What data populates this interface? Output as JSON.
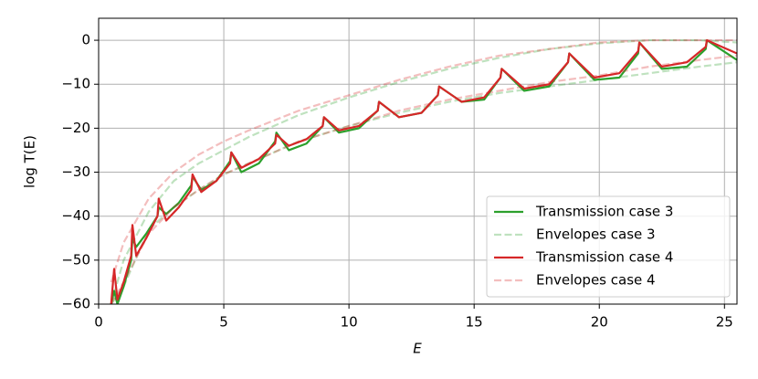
{
  "chart_data": {
    "type": "line",
    "xlabel": "E",
    "ylabel": "log T(E)",
    "xlim": [
      0,
      25.5
    ],
    "ylim": [
      -60,
      5
    ],
    "xticks": [
      0,
      5,
      10,
      15,
      20,
      25
    ],
    "yticks": [
      {
        "value": -60,
        "label": "−60"
      },
      {
        "value": -50,
        "label": "−50"
      },
      {
        "value": -40,
        "label": "−40"
      },
      {
        "value": -30,
        "label": "−30"
      },
      {
        "value": -20,
        "label": "−20"
      },
      {
        "value": -10,
        "label": "−10"
      },
      0
    ],
    "grid": true,
    "legend": "lower right",
    "series": [
      {
        "name": "Transmission case 3",
        "color": "#2ca02c",
        "alpha": 1,
        "dashed": false,
        "x": [
          0.5,
          0.62,
          0.75,
          1.0,
          1.3,
          1.35,
          1.5,
          1.9,
          2.35,
          2.4,
          2.7,
          3.2,
          3.7,
          3.75,
          4.1,
          4.7,
          5.25,
          5.3,
          5.7,
          6.4,
          7.05,
          7.1,
          7.6,
          8.3,
          8.95,
          9.0,
          9.6,
          10.4,
          11.15,
          11.2,
          12.0,
          12.9,
          13.55,
          13.6,
          14.5,
          15.4,
          16.05,
          16.1,
          17.0,
          18.0,
          18.75,
          18.8,
          19.8,
          20.8,
          21.55,
          21.6,
          22.5,
          23.5,
          24.25,
          24.3,
          25.5
        ],
        "curves": [
          [
            -60,
            -57,
            -60,
            -56,
            -50,
            -45,
            -47,
            -44,
            -40,
            -38,
            -39.5,
            -37,
            -33,
            -31,
            -34,
            -32,
            -27.5,
            -25.5,
            -30,
            -28,
            -23,
            -21,
            -25,
            -23.5,
            -19.5,
            -17.5,
            -21,
            -20,
            -16,
            -14,
            -17.5,
            -16.5,
            -12.5,
            -10.5,
            -14,
            -13.5,
            -8.5,
            -6.5,
            -11.5,
            -10.5,
            -5,
            -3,
            -9,
            -8.5,
            -3,
            -0.5,
            -6.5,
            -6,
            -2,
            0,
            -4.5
          ]
        ]
      },
      {
        "name": "Envelopes case 3",
        "color": "#2ca02c",
        "alpha": 0.3,
        "dashed": true,
        "x": [
          0.5,
          1,
          2,
          3,
          4,
          5,
          6,
          8,
          10,
          12,
          14,
          16,
          18,
          20,
          22,
          24,
          25.5
        ],
        "curves": [
          [
            -60,
            -50,
            -39,
            -32,
            -28,
            -25,
            -22,
            -17,
            -13,
            -9.5,
            -6.5,
            -4,
            -2,
            -0.7,
            0,
            0,
            -0.5
          ],
          [
            -60,
            -56,
            -43,
            -38,
            -34,
            -30.5,
            -28,
            -23,
            -19.5,
            -16.5,
            -14,
            -12,
            -10.5,
            -9,
            -7.5,
            -6,
            -5
          ]
        ]
      },
      {
        "name": "Transmission case 4",
        "color": "#d62728",
        "alpha": 1,
        "dashed": false,
        "x": [
          0.5,
          0.62,
          0.75,
          1.0,
          1.3,
          1.35,
          1.5,
          1.9,
          2.35,
          2.4,
          2.7,
          3.2,
          3.7,
          3.75,
          4.1,
          4.7,
          5.25,
          5.3,
          5.7,
          6.4,
          7.05,
          7.1,
          7.6,
          8.3,
          8.95,
          9.0,
          9.6,
          10.4,
          11.15,
          11.2,
          12.0,
          12.9,
          13.55,
          13.6,
          14.5,
          15.4,
          16.05,
          16.1,
          17.0,
          18.0,
          18.75,
          18.8,
          19.8,
          20.8,
          21.55,
          21.6,
          22.5,
          23.5,
          24.25,
          24.3,
          25.5
        ],
        "curves": [
          [
            -60,
            -52,
            -59,
            -55,
            -49,
            -42,
            -49,
            -45,
            -40,
            -36,
            -41,
            -38,
            -34,
            -30.5,
            -34.5,
            -32,
            -28,
            -25.5,
            -29,
            -27,
            -23.5,
            -21.5,
            -24,
            -22.5,
            -19.5,
            -17.5,
            -20.5,
            -19.5,
            -16,
            -14,
            -17.5,
            -16.5,
            -12.5,
            -10.5,
            -14,
            -13,
            -8.5,
            -6.5,
            -11,
            -10,
            -5,
            -3,
            -8.5,
            -7.5,
            -2.5,
            -0.5,
            -6,
            -5,
            -1.5,
            0,
            -3
          ]
        ]
      },
      {
        "name": "Envelopes case 4",
        "color": "#d62728",
        "alpha": 0.3,
        "dashed": true,
        "x": [
          0.5,
          1,
          2,
          3,
          4,
          5,
          6,
          8,
          10,
          12,
          14,
          16,
          18,
          20,
          22,
          24,
          25.5
        ],
        "curves": [
          [
            -55,
            -46,
            -36,
            -30,
            -26,
            -23,
            -20.5,
            -16,
            -12.5,
            -9,
            -6,
            -3.5,
            -2,
            -0.5,
            0,
            0,
            0
          ],
          [
            -60,
            -55,
            -44,
            -38,
            -34,
            -30.5,
            -28,
            -23,
            -19.5,
            -16,
            -13.5,
            -11.5,
            -9.5,
            -8,
            -6,
            -4.5,
            -3.5
          ]
        ]
      }
    ]
  }
}
